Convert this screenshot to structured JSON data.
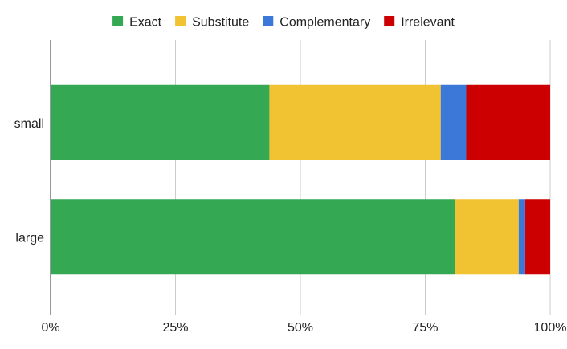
{
  "chart_data": {
    "type": "bar",
    "orientation": "horizontal",
    "stacked": "percent",
    "categories": [
      "small",
      "large"
    ],
    "series": [
      {
        "name": "Exact",
        "color": "#34a853",
        "values": [
          43.8,
          81.0
        ]
      },
      {
        "name": "Substitute",
        "color": "#f1c232",
        "values": [
          34.3,
          12.7
        ]
      },
      {
        "name": "Complementary",
        "color": "#3c78d8",
        "values": [
          5.1,
          1.3
        ]
      },
      {
        "name": "Irrelevant",
        "color": "#cc0000",
        "values": [
          16.8,
          5.0
        ]
      }
    ],
    "xlim": [
      0,
      100
    ],
    "xticks": [
      "0%",
      "25%",
      "50%",
      "75%",
      "100%"
    ],
    "grid": "vertical",
    "legend_position": "top"
  }
}
